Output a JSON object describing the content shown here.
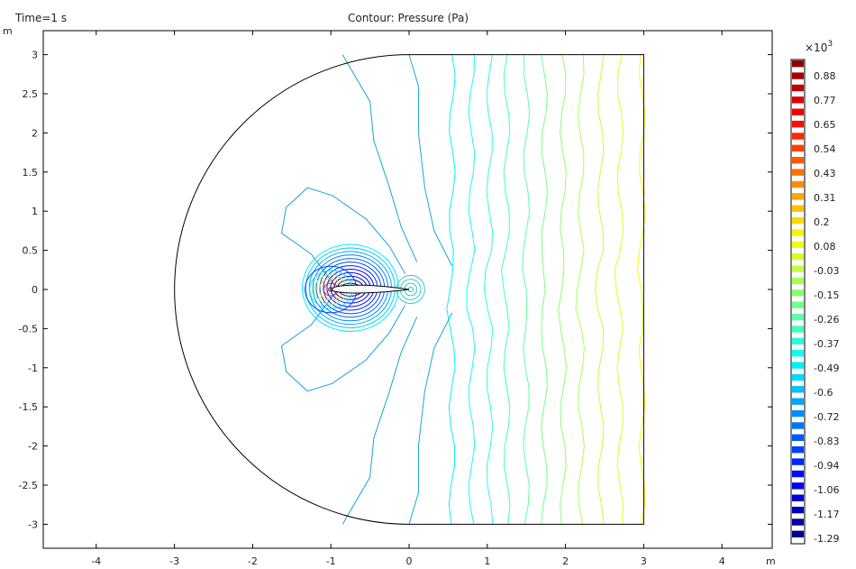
{
  "header": {
    "time_label": "Time=1 s",
    "title": "Contour: Pressure (Pa)"
  },
  "chart_data": {
    "type": "contour",
    "title": "Contour: Pressure (Pa)",
    "time_label": "Time=1 s",
    "x_axis": {
      "unit": "m",
      "ticks": [
        -4,
        -3,
        -2,
        -1,
        0,
        1,
        2,
        3,
        4
      ],
      "range": [
        -4.7,
        4.7
      ]
    },
    "y_axis": {
      "unit": "m",
      "ticks": [
        3,
        2.5,
        2,
        1.5,
        1,
        0.5,
        0,
        -0.5,
        -1,
        -1.5,
        -2,
        -2.5,
        -3
      ],
      "range": [
        -3.3,
        3.3
      ]
    },
    "domain": {
      "shape": "half-disk (center 0,0, radius 3) joined to rectangle x 0..3, y -3..3",
      "airfoil_chord": [
        -1,
        0
      ]
    },
    "colorbar": {
      "multiplier": "×10",
      "exponent": "3",
      "tick_labels": [
        "0.88",
        "0.77",
        "0.65",
        "0.54",
        "0.43",
        "0.31",
        "0.2",
        "0.08",
        "-0.03",
        "-0.15",
        "-0.26",
        "-0.37",
        "-0.49",
        "-0.6",
        "-0.72",
        "-0.83",
        "-0.94",
        "-1.06",
        "-1.17",
        "-1.29"
      ],
      "tick_values": [
        0.88,
        0.77,
        0.65,
        0.54,
        0.43,
        0.31,
        0.2,
        0.08,
        -0.03,
        -0.15,
        -0.26,
        -0.37,
        -0.49,
        -0.6,
        -0.72,
        -0.83,
        -0.94,
        -1.06,
        -1.17,
        -1.29
      ],
      "stops": [
        "#7f0000",
        "#ff0000",
        "#ff8000",
        "#ffff00",
        "#80ff80",
        "#00ffff",
        "#0080ff",
        "#0000ff",
        "#00007f"
      ]
    },
    "far_field_contours_x": [
      0.55,
      0.8,
      1.03,
      1.25,
      1.5,
      1.73,
      1.97,
      2.2,
      2.45,
      2.7,
      2.98
    ],
    "colors": {
      "axis": "#000000",
      "background": "#ffffff"
    }
  }
}
